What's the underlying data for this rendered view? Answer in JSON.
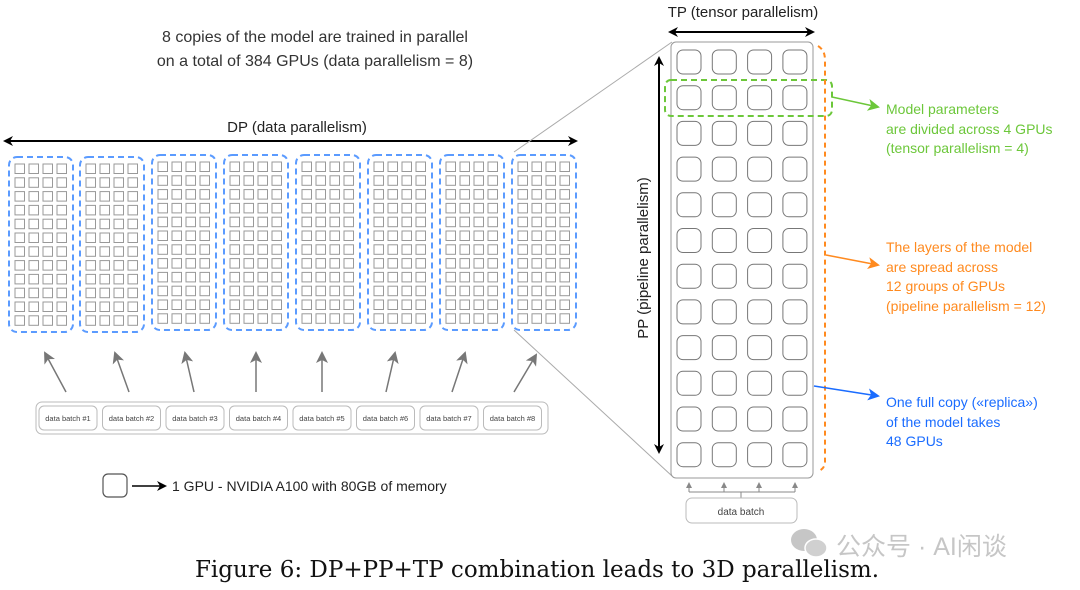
{
  "title_lines": [
    "8 copies of the model are trained in parallel",
    "on a total of 384 GPUs (data parallelism = 8)"
  ],
  "dp_label": "DP (data parallelism)",
  "tp_label": "TP (tensor parallelism)",
  "pp_label": "PP (pipeline parallelism)",
  "data_batches": [
    "data batch #1",
    "data batch #2",
    "data batch #3",
    "data batch #4",
    "data batch #5",
    "data batch #6",
    "data batch #7",
    "data batch #8"
  ],
  "legend_text": "1 GPU - NVIDIA A100 with 80GB of memory",
  "replica_data_batch": "data batch",
  "annotations": {
    "tensor": {
      "lines": [
        "Model parameters",
        "are divided across 4 GPUs",
        "(tensor parallelism = 4)"
      ],
      "color": "#6cc73a"
    },
    "pipeline": {
      "lines": [
        "The layers of the model",
        "are spread across",
        "12 groups of GPUs",
        "(pipeline parallelism = 12)"
      ],
      "color": "#ff8a1f"
    },
    "replica": {
      "lines": [
        "One full copy («replica»)",
        "of the model takes",
        "48 GPUs"
      ],
      "color": "#1a6cff"
    }
  },
  "dp_group_color": "#5b9bff",
  "caption": "Figure 6: DP+PP+TP combination leads to 3D parallelism.",
  "watermark": "公众号 · AI闲谈"
}
